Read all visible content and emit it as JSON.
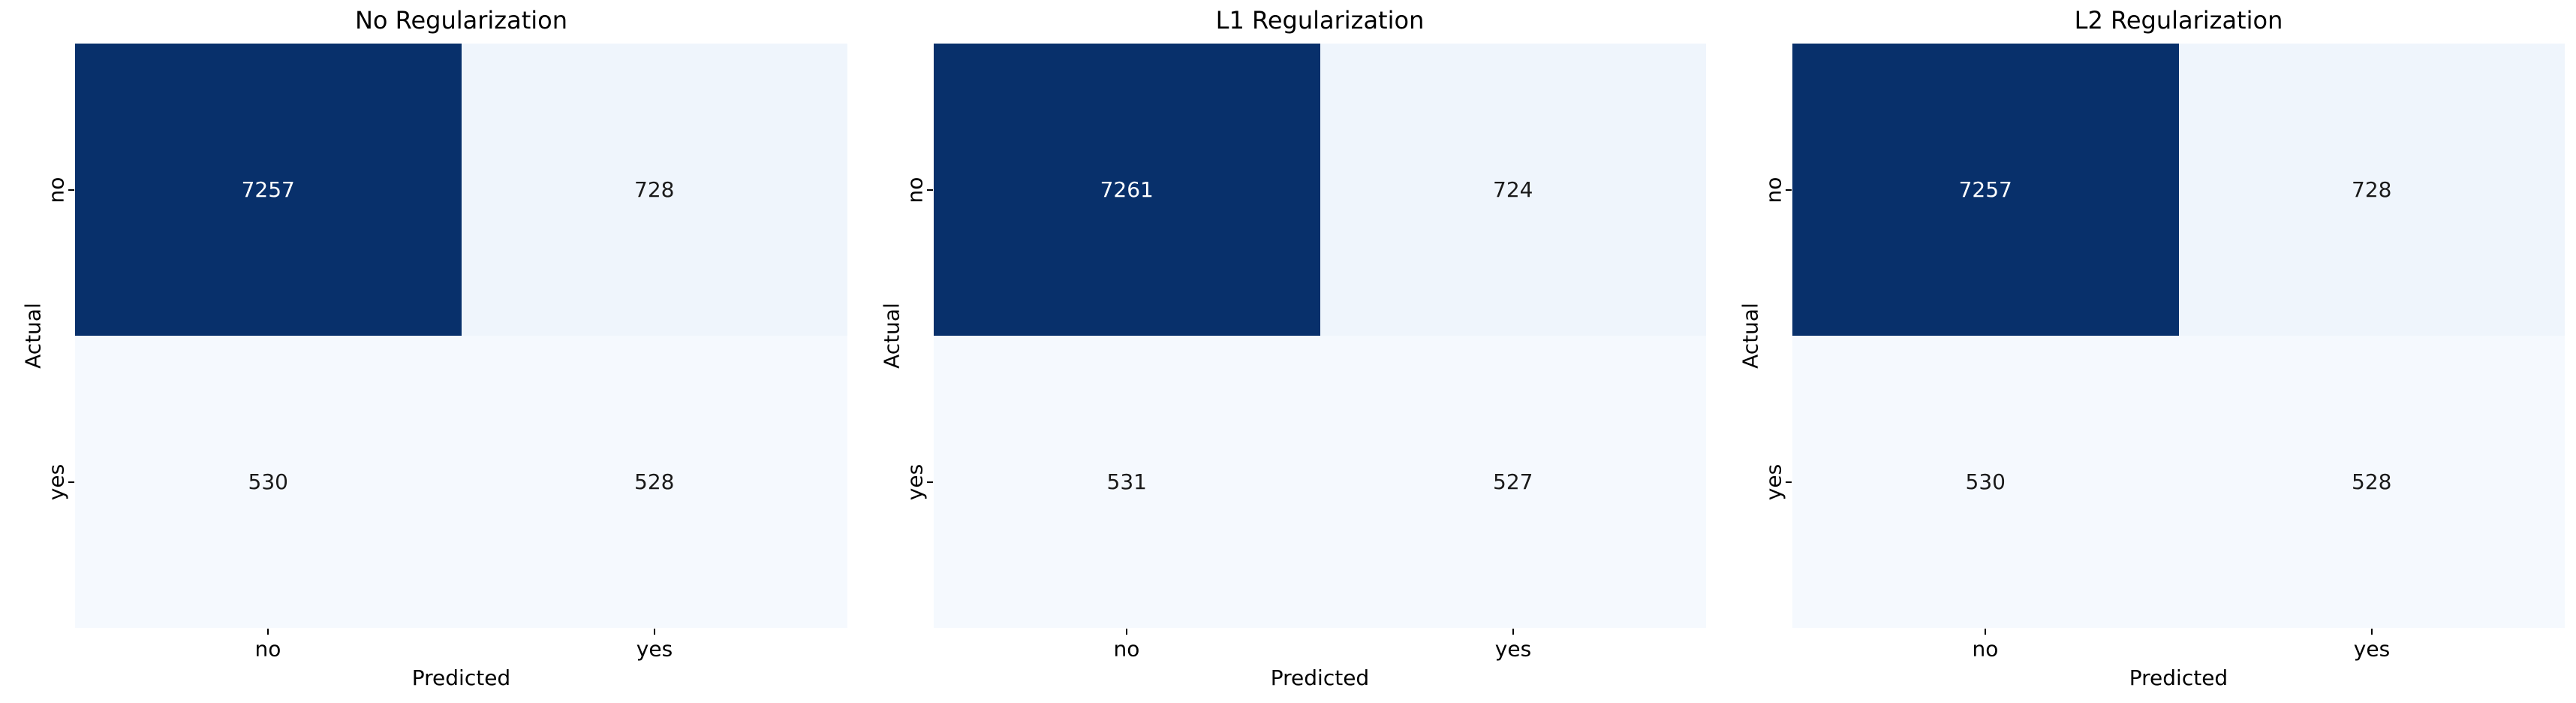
{
  "figure": {
    "background": "#ffffff",
    "colormap": "Blues",
    "dark_cell_color": "#08306b",
    "light_cell_color_high": "#eff5fc",
    "light_cell_color_low": "#f5f9fe",
    "annotation_color_on_dark": "#ffffff",
    "annotation_color_on_light": "#1a1a1a"
  },
  "chart_data": [
    {
      "type": "heatmap",
      "title": "No Regularization",
      "xlabel": "Predicted",
      "ylabel": "Actual",
      "x_ticklabels": [
        "no",
        "yes"
      ],
      "y_ticklabels": [
        "no",
        "yes"
      ],
      "matrix": [
        [
          7257,
          728
        ],
        [
          530,
          528
        ]
      ],
      "cell_colors": [
        [
          "#08306b",
          "#eff5fc"
        ],
        [
          "#f5f9fe",
          "#f5f9fe"
        ]
      ],
      "text_colors": [
        [
          "#ffffff",
          "#1a1a1a"
        ],
        [
          "#1a1a1a",
          "#1a1a1a"
        ]
      ]
    },
    {
      "type": "heatmap",
      "title": "L1 Regularization",
      "xlabel": "Predicted",
      "ylabel": "Actual",
      "x_ticklabels": [
        "no",
        "yes"
      ],
      "y_ticklabels": [
        "no",
        "yes"
      ],
      "matrix": [
        [
          7261,
          724
        ],
        [
          531,
          527
        ]
      ],
      "cell_colors": [
        [
          "#08306b",
          "#eff5fc"
        ],
        [
          "#f5f9fe",
          "#f5f9fe"
        ]
      ],
      "text_colors": [
        [
          "#ffffff",
          "#1a1a1a"
        ],
        [
          "#1a1a1a",
          "#1a1a1a"
        ]
      ]
    },
    {
      "type": "heatmap",
      "title": "L2 Regularization",
      "xlabel": "Predicted",
      "ylabel": "Actual",
      "x_ticklabels": [
        "no",
        "yes"
      ],
      "y_ticklabels": [
        "no",
        "yes"
      ],
      "matrix": [
        [
          7257,
          728
        ],
        [
          530,
          528
        ]
      ],
      "cell_colors": [
        [
          "#08306b",
          "#eff5fc"
        ],
        [
          "#f5f9fe",
          "#f5f9fe"
        ]
      ],
      "text_colors": [
        [
          "#ffffff",
          "#1a1a1a"
        ],
        [
          "#1a1a1a",
          "#1a1a1a"
        ]
      ]
    }
  ]
}
